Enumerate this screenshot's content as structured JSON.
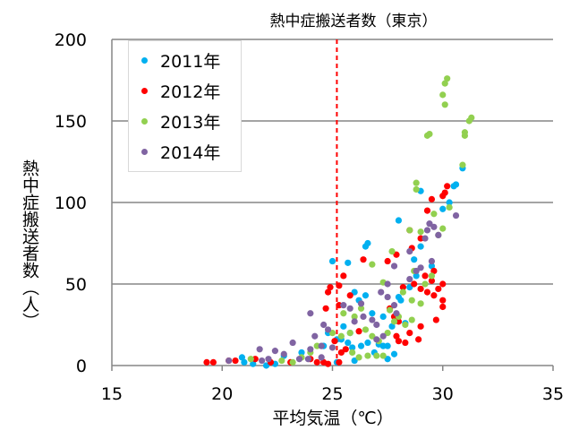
{
  "chart_data": {
    "type": "scatter",
    "title": "熱中症搬送者数（東京）",
    "xlabel": "平均気温（℃）",
    "ylabel": "熱中症搬送者数（人）",
    "xlim": [
      15,
      35
    ],
    "ylim": [
      0,
      200
    ],
    "xticks": [
      "15",
      "20",
      "25",
      "30",
      "35"
    ],
    "yticks": [
      "0",
      "50",
      "100",
      "150",
      "200"
    ],
    "grid": "horizontal",
    "legend_position": "top-left",
    "reference_line": {
      "x": 25.2,
      "color": "#ff0000",
      "style": "dashed"
    },
    "series": [
      {
        "name": "2011年",
        "color": "#00b0f0",
        "points": [
          [
            30.9,
            121
          ],
          [
            30.6,
            111
          ],
          [
            30.5,
            110
          ],
          [
            30.3,
            100
          ],
          [
            30.0,
            96
          ],
          [
            29.0,
            107
          ],
          [
            28.0,
            89
          ],
          [
            26.6,
            75
          ],
          [
            26.5,
            73
          ],
          [
            25.7,
            63
          ],
          [
            25.0,
            64
          ],
          [
            25.8,
            20
          ],
          [
            25.5,
            24
          ],
          [
            25.7,
            14
          ],
          [
            25.9,
            11
          ],
          [
            26.3,
            12
          ],
          [
            26.6,
            14
          ],
          [
            27.1,
            13
          ],
          [
            27.3,
            12
          ],
          [
            26.9,
            8
          ],
          [
            27.5,
            12
          ],
          [
            28.0,
            42
          ],
          [
            28.1,
            40
          ],
          [
            28.5,
            48
          ],
          [
            28.7,
            65
          ],
          [
            29.0,
            73
          ],
          [
            28.8,
            55
          ],
          [
            29.5,
            61
          ],
          [
            26.0,
            45
          ],
          [
            26.2,
            40
          ],
          [
            26.5,
            43
          ],
          [
            26.8,
            32
          ],
          [
            27.3,
            30
          ],
          [
            25.4,
            16
          ],
          [
            25.2,
            16
          ],
          [
            24.8,
            20
          ],
          [
            24.6,
            12
          ],
          [
            23.6,
            8
          ],
          [
            22.8,
            6
          ],
          [
            21.4,
            1
          ],
          [
            21.0,
            2
          ],
          [
            22.0,
            0
          ],
          [
            22.4,
            1
          ],
          [
            20.9,
            5
          ],
          [
            25.2,
            2
          ],
          [
            26.0,
            3
          ],
          [
            27.5,
            4
          ],
          [
            27.8,
            7
          ],
          [
            28.3,
            26
          ],
          [
            27.7,
            24
          ]
        ]
      },
      {
        "name": "2012年",
        "color": "#ff0000",
        "points": [
          [
            30.2,
            110
          ],
          [
            30.1,
            106
          ],
          [
            30.0,
            104
          ],
          [
            29.5,
            102
          ],
          [
            29.3,
            95
          ],
          [
            29.0,
            78
          ],
          [
            28.5,
            83
          ],
          [
            28.6,
            72
          ],
          [
            27.5,
            64
          ],
          [
            27.9,
            68
          ],
          [
            26.4,
            65
          ],
          [
            25.3,
            49
          ],
          [
            25.5,
            55
          ],
          [
            25.8,
            43
          ],
          [
            24.8,
            45
          ],
          [
            24.7,
            35
          ],
          [
            25.3,
            37
          ],
          [
            24.9,
            48
          ],
          [
            29.6,
            58
          ],
          [
            29.2,
            55
          ],
          [
            29.5,
            52
          ],
          [
            30.0,
            50
          ],
          [
            29.8,
            47
          ],
          [
            29.3,
            45
          ],
          [
            29.0,
            47
          ],
          [
            29.6,
            43
          ],
          [
            30.0,
            40
          ],
          [
            30.0,
            36
          ],
          [
            28.7,
            50
          ],
          [
            28.2,
            48
          ],
          [
            27.6,
            35
          ],
          [
            27.8,
            30
          ],
          [
            28.0,
            27
          ],
          [
            28.5,
            20
          ],
          [
            28.9,
            16
          ],
          [
            28.0,
            15
          ],
          [
            27.9,
            18
          ],
          [
            28.3,
            14
          ],
          [
            26.2,
            21
          ],
          [
            25.6,
            10
          ],
          [
            24.3,
            2
          ],
          [
            24.6,
            2
          ],
          [
            24.8,
            1
          ],
          [
            25.3,
            2
          ],
          [
            25.4,
            8
          ],
          [
            19.3,
            2
          ],
          [
            19.6,
            2
          ],
          [
            20.3,
            3
          ],
          [
            20.6,
            3
          ],
          [
            21.5,
            4
          ],
          [
            22.2,
            2
          ],
          [
            23.1,
            2
          ],
          [
            24.0,
            4
          ],
          [
            25.1,
            15
          ],
          [
            29.7,
            28
          ],
          [
            29.0,
            24
          ]
        ]
      },
      {
        "name": "2013年",
        "color": "#92d050",
        "points": [
          [
            30.2,
            176
          ],
          [
            30.1,
            173
          ],
          [
            30.0,
            166
          ],
          [
            30.1,
            160
          ],
          [
            31.3,
            152
          ],
          [
            31.2,
            150
          ],
          [
            31.0,
            143
          ],
          [
            31.0,
            141
          ],
          [
            29.4,
            142
          ],
          [
            29.3,
            141
          ],
          [
            30.9,
            123
          ],
          [
            28.8,
            112
          ],
          [
            28.8,
            108
          ],
          [
            30.3,
            97
          ],
          [
            29.6,
            93
          ],
          [
            30.0,
            84
          ],
          [
            29.8,
            80
          ],
          [
            29.0,
            82
          ],
          [
            28.5,
            83
          ],
          [
            27.7,
            70
          ],
          [
            29.5,
            55
          ],
          [
            29.2,
            50
          ],
          [
            28.7,
            58
          ],
          [
            26.8,
            62
          ],
          [
            27.3,
            51
          ],
          [
            28.6,
            40
          ],
          [
            29.0,
            38
          ],
          [
            28.2,
            45
          ],
          [
            26.3,
            35
          ],
          [
            26.0,
            30
          ],
          [
            25.5,
            32
          ],
          [
            25.8,
            20
          ],
          [
            26.5,
            22
          ],
          [
            26.8,
            18
          ],
          [
            27.5,
            20
          ],
          [
            27.1,
            15
          ],
          [
            26.2,
            5
          ],
          [
            26.6,
            6
          ],
          [
            27.0,
            6
          ],
          [
            27.3,
            6
          ],
          [
            25.9,
            8
          ],
          [
            27.8,
            27
          ],
          [
            28.3,
            25
          ],
          [
            28.6,
            28
          ],
          [
            22.7,
            3
          ],
          [
            23.6,
            5
          ],
          [
            24.0,
            8
          ],
          [
            24.3,
            12
          ],
          [
            21.3,
            4
          ],
          [
            23.2,
            2
          ],
          [
            25.0,
            20
          ],
          [
            25.4,
            18
          ],
          [
            27.6,
            34
          ],
          [
            28.0,
            30
          ]
        ]
      },
      {
        "name": "2014年",
        "color": "#8064a2",
        "points": [
          [
            30.6,
            92
          ],
          [
            29.3,
            83
          ],
          [
            29.4,
            87
          ],
          [
            29.6,
            85
          ],
          [
            29.8,
            80
          ],
          [
            29.2,
            78
          ],
          [
            28.5,
            70
          ],
          [
            29.0,
            60
          ],
          [
            29.5,
            64
          ],
          [
            28.8,
            58
          ],
          [
            28.5,
            53
          ],
          [
            27.8,
            61
          ],
          [
            27.5,
            50
          ],
          [
            27.8,
            37
          ],
          [
            27.5,
            42
          ],
          [
            27.2,
            45
          ],
          [
            26.3,
            38
          ],
          [
            25.8,
            35
          ],
          [
            25.5,
            37
          ],
          [
            26.4,
            30
          ],
          [
            26.0,
            27
          ],
          [
            24.6,
            25
          ],
          [
            24.8,
            22
          ],
          [
            24.2,
            18
          ],
          [
            23.2,
            14
          ],
          [
            22.8,
            7
          ],
          [
            21.7,
            10
          ],
          [
            22.4,
            9
          ],
          [
            24.0,
            10
          ],
          [
            24.5,
            12
          ],
          [
            24.5,
            5
          ],
          [
            23.5,
            4
          ],
          [
            22.1,
            4
          ],
          [
            21.8,
            3
          ],
          [
            20.3,
            3
          ],
          [
            23.9,
            4
          ],
          [
            25.0,
            11
          ],
          [
            27.9,
            32
          ],
          [
            27.0,
            25
          ],
          [
            26.8,
            28
          ],
          [
            24.0,
            32
          ],
          [
            27.0,
            16
          ],
          [
            27.3,
            18
          ]
        ]
      }
    ]
  }
}
